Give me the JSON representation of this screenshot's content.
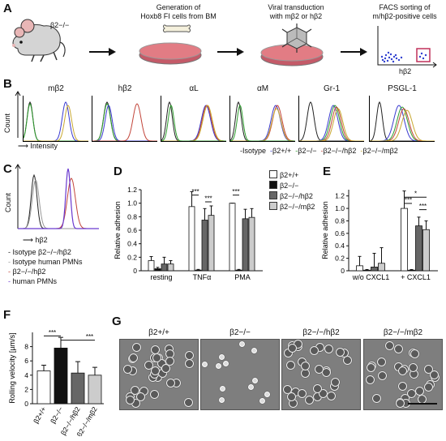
{
  "panels": {
    "A": {
      "letter": "A",
      "mouse_label": "β2−/−",
      "step1": "Generation of\nHoxb8 FI cells from BM",
      "step2": "Viral transduction\nwith mβ2 or hβ2",
      "step3": "FACS sorting of\nm/hβ2-positive cells",
      "facs_axis": "hβ2"
    },
    "B": {
      "letter": "B",
      "histograms": [
        "mβ2",
        "hβ2",
        "αL",
        "αM",
        "Gr-1",
        "PSGL-1"
      ],
      "ylabel": "Count",
      "xlabel": "Intensity",
      "legend": [
        "Isotype",
        "β2+/+",
        "β2−/−",
        "β2−/−/hβ2",
        "β2−/−/mβ2"
      ],
      "colors": {
        "isotype": "#222222",
        "wt": "#3a3ad0",
        "ko": "#2e9e2e",
        "h": "#c2453a",
        "m": "#c8a830"
      }
    },
    "C": {
      "letter": "C",
      "ylabel": "Count",
      "xlabel": "hβ2",
      "legend": [
        "Isotype β2−/−/hβ2",
        "Isotype human PMNs",
        "β2−/−/hβ2",
        "human PMNs"
      ]
    },
    "D": {
      "letter": "D",
      "legend": [
        "β2+/+",
        "β2−/−",
        "β2−/−/hβ2",
        "β2−/−/mβ2"
      ],
      "sig": [
        "***",
        "***",
        "***"
      ]
    },
    "E": {
      "letter": "E",
      "sig": [
        "***",
        "***",
        "*"
      ]
    },
    "F": {
      "letter": "F",
      "sig": [
        "***",
        "***"
      ]
    },
    "G": {
      "letter": "G",
      "images": [
        "β2+/+",
        "β2−/−",
        "β2−/−/hβ2",
        "β2−/−/mβ2"
      ]
    }
  },
  "chart_data": [
    {
      "type": "bar",
      "panel": "D",
      "ylabel": "Relative adhesion",
      "categories": [
        "resting",
        "TNFα",
        "PMA"
      ],
      "ylim": [
        0,
        1.2
      ],
      "yticks": [
        0,
        0.2,
        0.4,
        0.6,
        0.8,
        1.0,
        1.2
      ],
      "series": [
        {
          "name": "β2+/+",
          "values": [
            0.15,
            0.95,
            1.0
          ],
          "errors": [
            0.06,
            0.22,
            0.0
          ]
        },
        {
          "name": "β2−/−",
          "values": [
            0.03,
            0.01,
            0.01
          ],
          "errors": [
            0.02,
            0.01,
            0.01
          ]
        },
        {
          "name": "β2−/−/hβ2",
          "values": [
            0.1,
            0.75,
            0.77
          ],
          "errors": [
            0.1,
            0.17,
            0.14
          ]
        },
        {
          "name": "β2−/−/mβ2",
          "values": [
            0.1,
            0.82,
            0.79
          ],
          "errors": [
            0.05,
            0.14,
            0.13
          ]
        }
      ]
    },
    {
      "type": "bar",
      "panel": "E",
      "ylabel": "Relative adhesion",
      "categories": [
        "w/o CXCL1",
        "+ CXCL1"
      ],
      "ylim": [
        0,
        1.3
      ],
      "yticks": [
        0,
        0.2,
        0.4,
        0.6,
        0.8,
        1.0,
        1.2
      ],
      "series": [
        {
          "name": "β2+/+",
          "values": [
            0.08,
            1.0
          ],
          "errors": [
            0.15,
            0.28
          ]
        },
        {
          "name": "β2−/−",
          "values": [
            0.01,
            0.01
          ],
          "errors": [
            0.01,
            0.01
          ]
        },
        {
          "name": "β2−/−/hβ2",
          "values": [
            0.06,
            0.72
          ],
          "errors": [
            0.22,
            0.14
          ]
        },
        {
          "name": "β2−/−/mβ2",
          "values": [
            0.12,
            0.66
          ],
          "errors": [
            0.25,
            0.14
          ]
        }
      ]
    },
    {
      "type": "bar",
      "panel": "F",
      "ylabel": "Rolling velocity  [µm/s]",
      "categories": [
        "β2+/+",
        "β2−/−",
        "β2−/−/hβ2",
        "β2−/−/mβ2"
      ],
      "ylim": [
        0,
        10
      ],
      "yticks": [
        0,
        2,
        4,
        6,
        8
      ],
      "values": [
        4.6,
        7.8,
        4.3,
        4.0
      ],
      "errors": [
        0.8,
        1.5,
        1.6,
        1.1
      ]
    }
  ]
}
